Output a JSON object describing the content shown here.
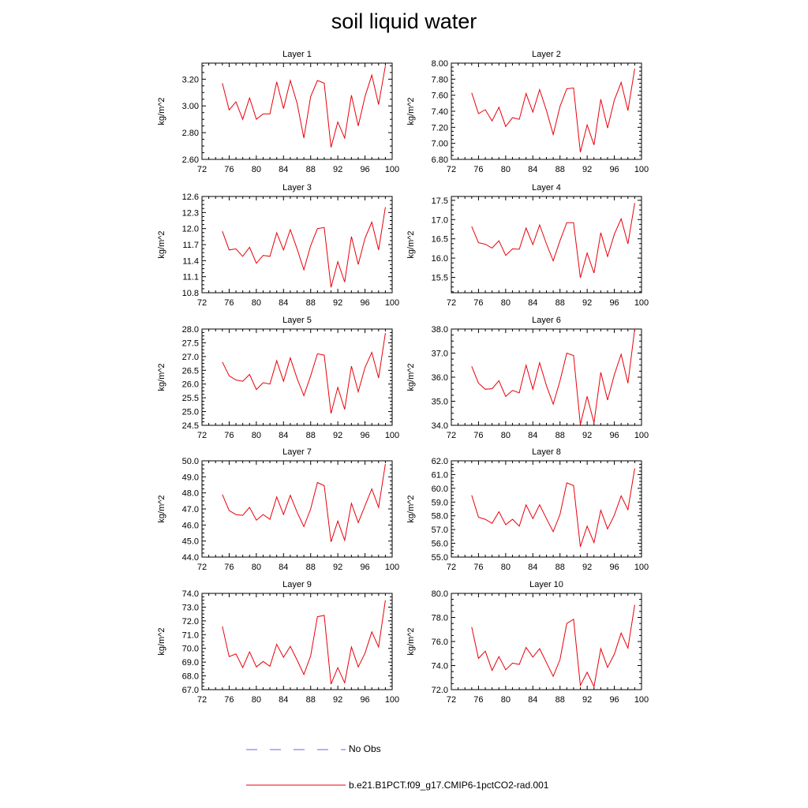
{
  "title": "soil liquid water",
  "legend": {
    "obs_label": "No Obs",
    "model_label": "b.e21.B1PCT.f09_g17.CMIP6-1pctCO2-rad.001",
    "obs_color": "#6a6ad8",
    "model_color": "#e8000b"
  },
  "chart_data": [
    {
      "type": "line",
      "title": "Layer 1",
      "xlabel": "",
      "ylabel": "kg/m^2",
      "xlim": [
        72,
        100
      ],
      "ylim": [
        2.6,
        3.32
      ],
      "xticks": [
        "72",
        "76",
        "80",
        "84",
        "88",
        "92",
        "96",
        "100"
      ],
      "yticks": [
        "2.60",
        "2.80",
        "3.00",
        "3.20"
      ],
      "series": [
        {
          "x": [
            75,
            76,
            77,
            78,
            79,
            80,
            81,
            82,
            83,
            84,
            85,
            86,
            87,
            88,
            89,
            90,
            91,
            92,
            93,
            94,
            95,
            96,
            97,
            98,
            99
          ],
          "values": [
            3.17,
            2.97,
            3.03,
            2.9,
            3.06,
            2.9,
            2.94,
            2.94,
            3.18,
            2.98,
            3.19,
            3.02,
            2.76,
            3.07,
            3.19,
            3.17,
            2.69,
            2.88,
            2.76,
            3.08,
            2.85,
            3.07,
            3.23,
            3.01,
            3.3
          ]
        }
      ]
    },
    {
      "type": "line",
      "title": "Layer 2",
      "xlabel": "",
      "ylabel": "kg/m^2",
      "xlim": [
        72,
        100
      ],
      "ylim": [
        6.8,
        8.0
      ],
      "xticks": [
        "72",
        "76",
        "80",
        "84",
        "88",
        "92",
        "96",
        "100"
      ],
      "yticks": [
        "6.80",
        "7.00",
        "7.20",
        "7.40",
        "7.60",
        "7.80",
        "8.00"
      ],
      "series": [
        {
          "x": [
            75,
            76,
            77,
            78,
            79,
            80,
            81,
            82,
            83,
            84,
            85,
            86,
            87,
            88,
            89,
            90,
            91,
            92,
            93,
            94,
            95,
            96,
            97,
            98,
            99
          ],
          "values": [
            7.63,
            7.37,
            7.42,
            7.28,
            7.45,
            7.21,
            7.32,
            7.3,
            7.62,
            7.39,
            7.67,
            7.41,
            7.11,
            7.46,
            7.68,
            7.69,
            6.89,
            7.23,
            6.98,
            7.55,
            7.19,
            7.54,
            7.76,
            7.41,
            7.93
          ]
        }
      ]
    },
    {
      "type": "line",
      "title": "Layer 3",
      "xlabel": "",
      "ylabel": "kg/m^2",
      "xlim": [
        72,
        100
      ],
      "ylim": [
        10.8,
        12.6
      ],
      "xticks": [
        "72",
        "76",
        "80",
        "84",
        "88",
        "92",
        "96",
        "100"
      ],
      "yticks": [
        "10.8",
        "11.1",
        "11.4",
        "11.7",
        "12.0",
        "12.3",
        "12.6"
      ],
      "series": [
        {
          "x": [
            75,
            76,
            77,
            78,
            79,
            80,
            81,
            82,
            83,
            84,
            85,
            86,
            87,
            88,
            89,
            90,
            91,
            92,
            93,
            94,
            95,
            96,
            97,
            98,
            99
          ],
          "values": [
            11.95,
            11.6,
            11.62,
            11.48,
            11.65,
            11.35,
            11.5,
            11.48,
            11.92,
            11.6,
            11.98,
            11.62,
            11.23,
            11.68,
            12.0,
            12.02,
            10.9,
            11.38,
            11.0,
            11.85,
            11.33,
            11.82,
            12.12,
            11.6,
            12.4
          ]
        }
      ]
    },
    {
      "type": "line",
      "title": "Layer 4",
      "xlabel": "",
      "ylabel": "kg/m^2",
      "xlim": [
        72,
        100
      ],
      "ylim": [
        15.1,
        17.6
      ],
      "xticks": [
        "72",
        "76",
        "80",
        "84",
        "88",
        "92",
        "96",
        "100"
      ],
      "yticks": [
        "15.5",
        "16.0",
        "16.5",
        "17.0",
        "17.5"
      ],
      "series": [
        {
          "x": [
            75,
            76,
            77,
            78,
            79,
            80,
            81,
            82,
            83,
            84,
            85,
            86,
            87,
            88,
            89,
            90,
            91,
            92,
            93,
            94,
            95,
            96,
            97,
            98,
            99
          ],
          "values": [
            16.82,
            16.4,
            16.36,
            16.26,
            16.45,
            16.07,
            16.24,
            16.23,
            16.78,
            16.35,
            16.86,
            16.37,
            15.93,
            16.45,
            16.92,
            16.92,
            15.49,
            16.13,
            15.61,
            16.66,
            16.04,
            16.62,
            17.02,
            16.37,
            17.43
          ]
        }
      ]
    },
    {
      "type": "line",
      "title": "Layer 5",
      "xlabel": "",
      "ylabel": "kg/m^2",
      "xlim": [
        72,
        100
      ],
      "ylim": [
        24.5,
        28.0
      ],
      "xticks": [
        "72",
        "76",
        "80",
        "84",
        "88",
        "92",
        "96",
        "100"
      ],
      "yticks": [
        "24.5",
        "25.0",
        "25.5",
        "26.0",
        "26.5",
        "27.0",
        "27.5",
        "28.0"
      ],
      "series": [
        {
          "x": [
            75,
            76,
            77,
            78,
            79,
            80,
            81,
            82,
            83,
            84,
            85,
            86,
            87,
            88,
            89,
            90,
            91,
            92,
            93,
            94,
            95,
            96,
            97,
            98,
            99
          ],
          "values": [
            26.8,
            26.3,
            26.15,
            26.1,
            26.35,
            25.8,
            26.05,
            26.0,
            26.85,
            26.1,
            26.95,
            26.2,
            25.58,
            26.3,
            27.1,
            27.05,
            24.93,
            25.88,
            25.08,
            26.65,
            25.72,
            26.6,
            27.15,
            26.22,
            27.85
          ]
        }
      ]
    },
    {
      "type": "line",
      "title": "Layer 6",
      "xlabel": "",
      "ylabel": "kg/m^2",
      "xlim": [
        72,
        100
      ],
      "ylim": [
        34.0,
        38.0
      ],
      "xticks": [
        "72",
        "76",
        "80",
        "84",
        "88",
        "92",
        "96",
        "100"
      ],
      "yticks": [
        "34.0",
        "35.0",
        "36.0",
        "37.0",
        "38.0"
      ],
      "series": [
        {
          "x": [
            75,
            76,
            77,
            78,
            79,
            80,
            81,
            82,
            83,
            84,
            85,
            86,
            87,
            88,
            89,
            90,
            91,
            92,
            93,
            94,
            95,
            96,
            97,
            98,
            99
          ],
          "values": [
            36.45,
            35.75,
            35.5,
            35.52,
            35.85,
            35.2,
            35.45,
            35.35,
            36.5,
            35.5,
            36.6,
            35.65,
            34.88,
            35.85,
            37.0,
            36.9,
            34.03,
            35.2,
            34.1,
            36.2,
            35.05,
            36.1,
            36.95,
            35.75,
            38.0
          ]
        }
      ]
    },
    {
      "type": "line",
      "title": "Layer 7",
      "xlabel": "",
      "ylabel": "kg/m^2",
      "xlim": [
        72,
        100
      ],
      "ylim": [
        44.0,
        50.0
      ],
      "xticks": [
        "72",
        "76",
        "80",
        "84",
        "88",
        "92",
        "96",
        "100"
      ],
      "yticks": [
        "44.0",
        "45.0",
        "46.0",
        "47.0",
        "48.0",
        "49.0",
        "50.0"
      ],
      "series": [
        {
          "x": [
            75,
            76,
            77,
            78,
            79,
            80,
            81,
            82,
            83,
            84,
            85,
            86,
            87,
            88,
            89,
            90,
            91,
            92,
            93,
            94,
            95,
            96,
            97,
            98,
            99
          ],
          "values": [
            47.9,
            46.9,
            46.65,
            46.6,
            47.1,
            46.3,
            46.65,
            46.35,
            47.75,
            46.65,
            47.85,
            46.8,
            45.9,
            47.0,
            48.65,
            48.45,
            44.95,
            46.25,
            45.05,
            47.35,
            46.15,
            47.2,
            48.25,
            47.1,
            49.8
          ]
        }
      ]
    },
    {
      "type": "line",
      "title": "Layer 8",
      "xlabel": "",
      "ylabel": "kg/m^2",
      "xlim": [
        72,
        100
      ],
      "ylim": [
        55.0,
        62.0
      ],
      "xticks": [
        "72",
        "76",
        "80",
        "84",
        "88",
        "92",
        "96",
        "100"
      ],
      "yticks": [
        "55.0",
        "56.0",
        "57.0",
        "58.0",
        "59.0",
        "60.0",
        "61.0",
        "62.0"
      ],
      "series": [
        {
          "x": [
            75,
            76,
            77,
            78,
            79,
            80,
            81,
            82,
            83,
            84,
            85,
            86,
            87,
            88,
            89,
            90,
            91,
            92,
            93,
            94,
            95,
            96,
            97,
            98,
            99
          ],
          "values": [
            59.5,
            57.9,
            57.75,
            57.45,
            58.3,
            57.35,
            57.75,
            57.25,
            58.8,
            57.8,
            58.8,
            57.8,
            56.85,
            58.1,
            60.4,
            60.2,
            55.75,
            57.25,
            56.05,
            58.4,
            57.05,
            58.05,
            59.45,
            58.45,
            61.45
          ]
        }
      ]
    },
    {
      "type": "line",
      "title": "Layer 9",
      "xlabel": "",
      "ylabel": "kg/m^2",
      "xlim": [
        72,
        100
      ],
      "ylim": [
        67.0,
        74.0
      ],
      "xticks": [
        "72",
        "76",
        "80",
        "84",
        "88",
        "92",
        "96",
        "100"
      ],
      "yticks": [
        "67.0",
        "68.0",
        "69.0",
        "70.0",
        "71.0",
        "72.0",
        "73.0",
        "74.0"
      ],
      "series": [
        {
          "x": [
            75,
            76,
            77,
            78,
            79,
            80,
            81,
            82,
            83,
            84,
            85,
            86,
            87,
            88,
            89,
            90,
            91,
            92,
            93,
            94,
            95,
            96,
            97,
            98,
            99
          ],
          "values": [
            71.6,
            69.4,
            69.6,
            68.6,
            69.75,
            68.65,
            69.05,
            68.7,
            70.3,
            69.35,
            70.15,
            69.15,
            68.1,
            69.45,
            72.3,
            72.4,
            67.4,
            68.6,
            67.5,
            70.1,
            68.65,
            69.65,
            71.2,
            70.1,
            73.5
          ]
        }
      ]
    },
    {
      "type": "line",
      "title": "Layer 10",
      "xlabel": "",
      "ylabel": "kg/m^2",
      "xlim": [
        72,
        100
      ],
      "ylim": [
        72.0,
        80.0
      ],
      "xticks": [
        "72",
        "76",
        "80",
        "84",
        "88",
        "92",
        "96",
        "100"
      ],
      "yticks": [
        "72.0",
        "74.0",
        "76.0",
        "78.0",
        "80.0"
      ],
      "series": [
        {
          "x": [
            75,
            76,
            77,
            78,
            79,
            80,
            81,
            82,
            83,
            84,
            85,
            86,
            87,
            88,
            89,
            90,
            91,
            92,
            93,
            94,
            95,
            96,
            97,
            98,
            99
          ],
          "values": [
            77.2,
            74.6,
            75.2,
            73.6,
            74.75,
            73.65,
            74.2,
            74.1,
            75.5,
            74.7,
            75.4,
            74.25,
            73.1,
            74.5,
            77.5,
            77.85,
            72.35,
            73.45,
            72.25,
            75.4,
            73.85,
            74.95,
            76.7,
            75.45,
            79.05
          ]
        }
      ]
    }
  ]
}
